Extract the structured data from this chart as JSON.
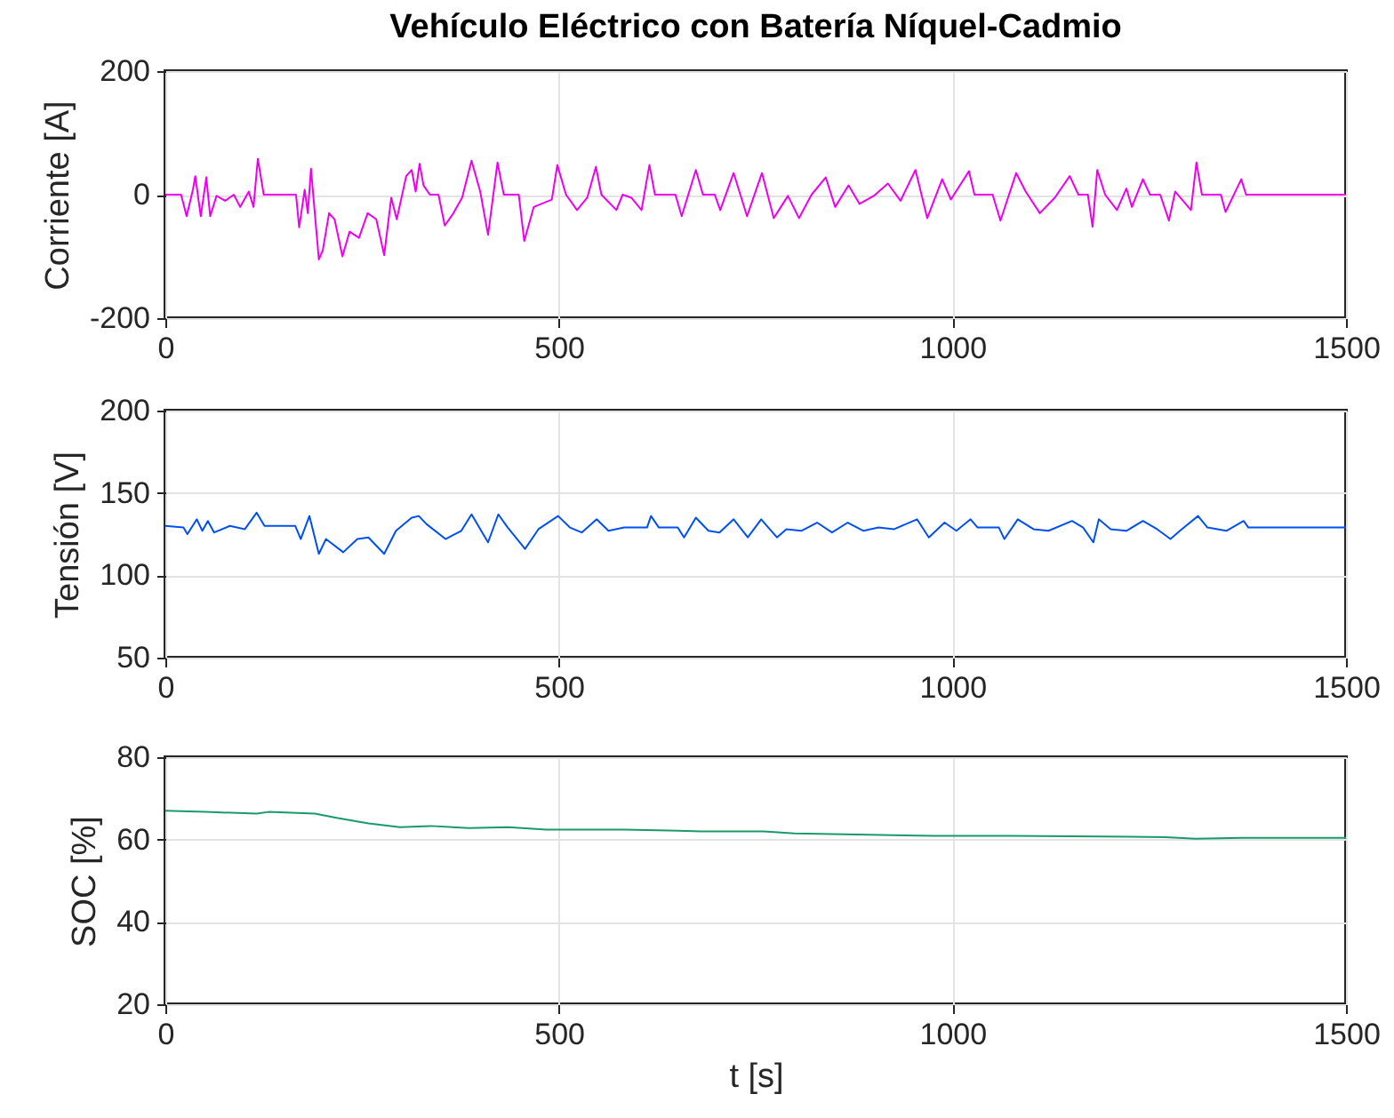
{
  "chart_data": [
    {
      "type": "line",
      "title": "Vehículo Eléctrico con Batería Níquel-Cadmio",
      "ylabel": "Corriente [A]",
      "xlim": [
        0,
        1500
      ],
      "xticks": [
        0,
        500,
        1000,
        1500
      ],
      "ylim": [
        -200,
        200
      ],
      "yticks": [
        -200,
        0,
        200
      ],
      "grid": true,
      "x": [
        0,
        20,
        27,
        35,
        38,
        45,
        52,
        57,
        65,
        76,
        87,
        95,
        106,
        112,
        117.5,
        125,
        166,
        170,
        177,
        181,
        185,
        195,
        200,
        208,
        215,
        225,
        234,
        246,
        257,
        268,
        278,
        287,
        294,
        306,
        313,
        318,
        323,
        328,
        336,
        347,
        355,
        366,
        377,
        389,
        400,
        410,
        422,
        430,
        449,
        456,
        468,
        491,
        498,
        509,
        523,
        536,
        547,
        554,
        573,
        581,
        592,
        605,
        615,
        622,
        648,
        656,
        674,
        683,
        698,
        705,
        722,
        739,
        758,
        773,
        791,
        805,
        821,
        839,
        851,
        868,
        882,
        900,
        918,
        934,
        953,
        968,
        987,
        998,
        1021,
        1028,
        1051,
        1061,
        1081,
        1093,
        1111,
        1130,
        1149,
        1160,
        1172,
        1178,
        1184,
        1194,
        1209,
        1221,
        1228,
        1242,
        1251,
        1264,
        1275,
        1283,
        1303,
        1310,
        1317,
        1341,
        1347,
        1367,
        1373,
        1500
      ],
      "series": [
        {
          "color": "#ee00ee",
          "values": [
            0,
            0,
            -35,
            8,
            30,
            -35,
            28,
            -35,
            -2,
            -10,
            0,
            -20,
            5,
            -20,
            58,
            0,
            0,
            -53,
            8,
            -30,
            42,
            -105,
            -90,
            -30,
            -40,
            -100,
            -60,
            -70,
            -30,
            -40,
            -98,
            -5,
            -40,
            30,
            40,
            5,
            50,
            15,
            0,
            0,
            -50,
            -30,
            -5,
            55,
            5,
            -65,
            52,
            0,
            0,
            -75,
            -20,
            -8,
            48,
            0,
            -25,
            -5,
            45,
            0,
            -25,
            0,
            -5,
            -25,
            48,
            0,
            0,
            -35,
            40,
            0,
            0,
            -25,
            35,
            -35,
            35,
            -38,
            -2,
            -38,
            0,
            28,
            -20,
            15,
            -15,
            -2,
            18,
            -10,
            40,
            -38,
            25,
            -8,
            38,
            0,
            0,
            -42,
            35,
            5,
            -30,
            -5,
            30,
            0,
            0,
            -52,
            40,
            0,
            -25,
            10,
            -20,
            25,
            0,
            0,
            -42,
            5,
            -25,
            52,
            0,
            0,
            -28,
            25,
            0,
            0
          ]
        }
      ]
    },
    {
      "type": "line",
      "ylabel": "Tensión [V]",
      "xlim": [
        0,
        1500
      ],
      "xticks": [
        0,
        500,
        1000,
        1500
      ],
      "ylim": [
        50,
        200
      ],
      "yticks": [
        50,
        100,
        150,
        200
      ],
      "grid": true,
      "x": [
        0,
        23,
        28,
        40,
        47,
        54,
        62,
        82,
        101,
        116,
        126,
        165,
        172,
        183,
        195,
        204,
        226,
        244,
        258,
        278,
        293,
        313,
        322,
        332,
        356,
        376,
        389,
        410,
        423,
        435,
        457,
        474,
        499,
        514,
        529,
        548,
        563,
        583,
        612,
        617,
        627,
        651,
        659,
        674,
        690,
        704,
        722,
        740,
        757,
        777,
        789,
        808,
        828,
        847,
        867,
        887,
        906,
        926,
        955,
        970,
        990,
        1005,
        1023,
        1032,
        1059,
        1066,
        1083,
        1103,
        1122,
        1152,
        1166,
        1179,
        1186,
        1201,
        1221,
        1242,
        1260,
        1277,
        1289,
        1312,
        1324,
        1348,
        1370,
        1376,
        1500
      ],
      "series": [
        {
          "color": "#0050f0",
          "values": [
            130,
            129,
            125,
            134,
            127,
            133,
            126,
            130,
            128,
            138,
            130,
            130,
            122,
            136,
            113,
            122,
            114,
            122,
            123,
            113,
            127,
            135,
            136,
            131,
            122,
            127,
            137,
            120,
            137,
            129,
            116,
            128,
            136,
            129,
            126,
            134,
            127,
            129,
            129,
            136,
            129,
            129,
            123,
            135,
            127,
            126,
            134,
            123,
            134,
            123,
            128,
            127,
            132,
            126,
            132,
            127,
            129,
            128,
            134,
            123,
            132,
            127,
            134,
            129,
            129,
            122,
            134,
            128,
            127,
            133,
            129,
            120,
            134,
            128,
            127,
            133,
            128,
            122,
            127,
            136,
            129,
            127,
            133,
            129,
            129
          ]
        }
      ]
    },
    {
      "type": "line",
      "xlabel": "t [s]",
      "ylabel": "SOC [%]",
      "xlim": [
        0,
        1500
      ],
      "xticks": [
        0,
        500,
        1000,
        1500
      ],
      "ylim": [
        20,
        80
      ],
      "yticks": [
        20,
        40,
        60,
        80
      ],
      "grid": true,
      "x": [
        0,
        52,
        116,
        131,
        190,
        219,
        258,
        298,
        337,
        386,
        435,
        484,
        583,
        681,
        760,
        799,
        976,
        1074,
        1270,
        1309,
        1368,
        1500
      ],
      "series": [
        {
          "color": "#1a9a6a",
          "values": [
            67,
            66.7,
            66.3,
            66.7,
            66.3,
            65.2,
            63.9,
            63,
            63.3,
            62.8,
            63,
            62.4,
            62.4,
            62,
            62,
            61.5,
            60.9,
            60.9,
            60.6,
            60.2,
            60.4,
            60.4
          ]
        }
      ]
    }
  ]
}
